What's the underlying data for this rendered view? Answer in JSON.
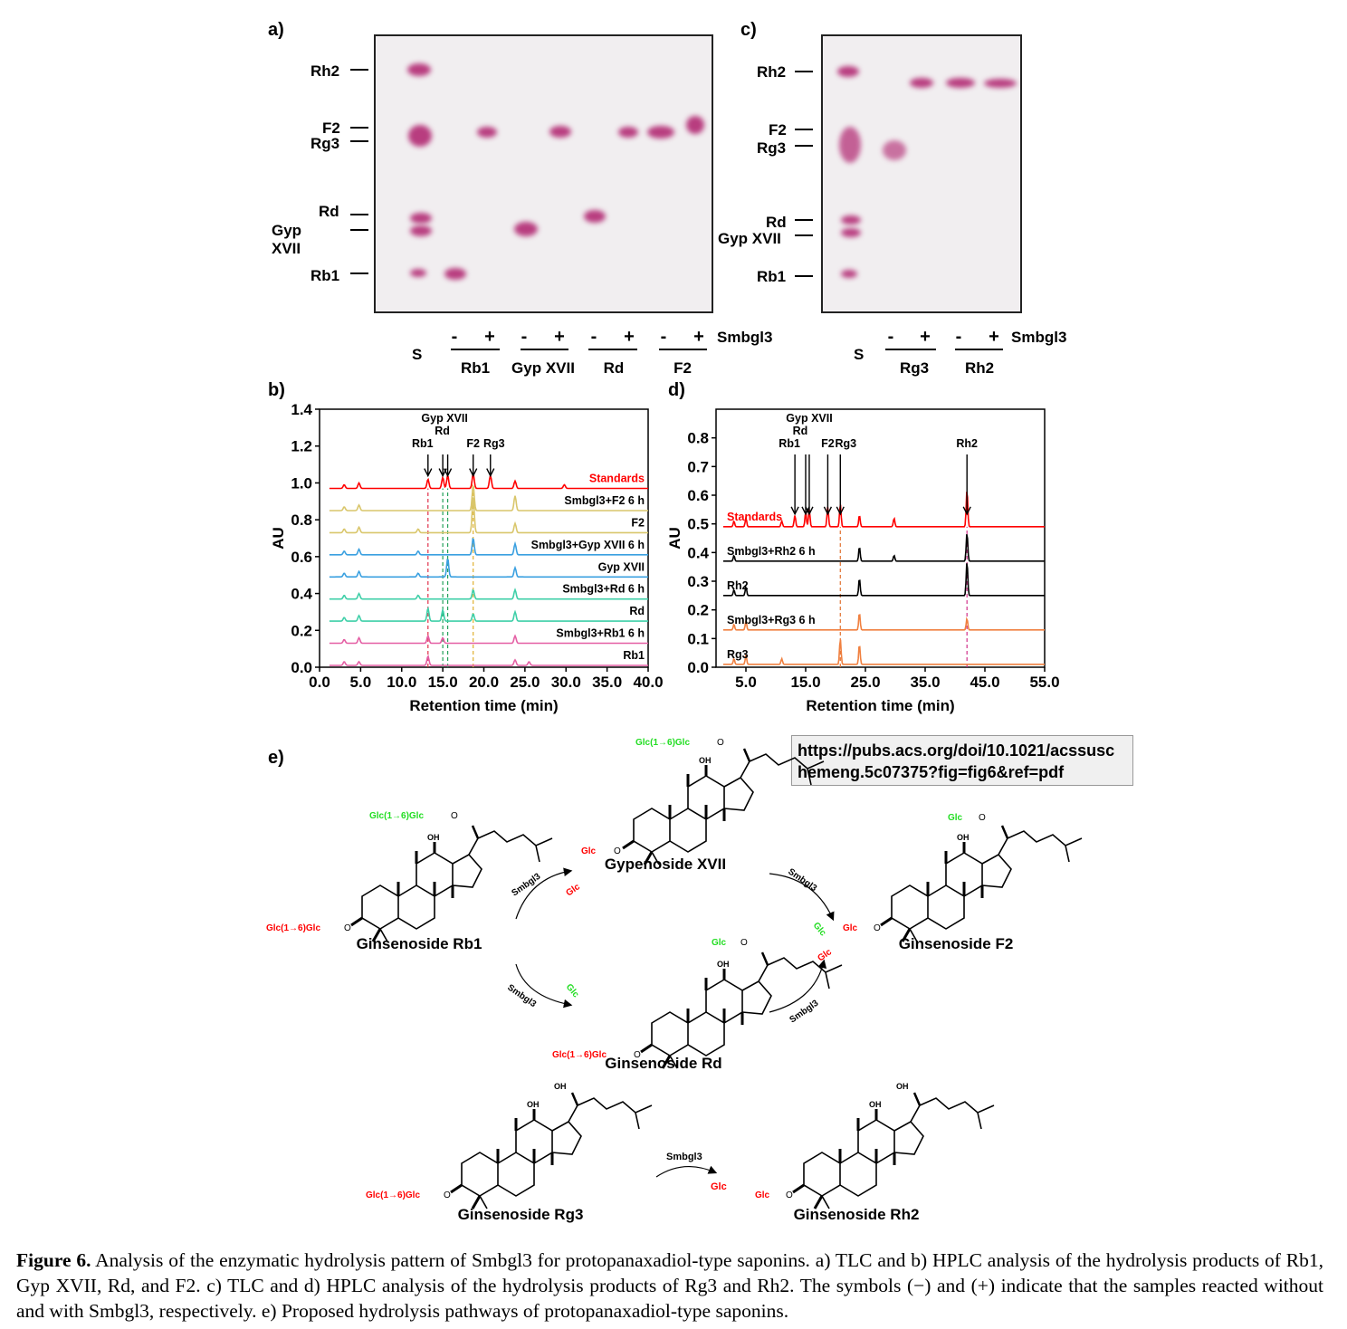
{
  "panels": {
    "a": "a)",
    "b": "b)",
    "c": "c)",
    "d": "d)",
    "e": "e)"
  },
  "tlc_a": {
    "compounds": [
      "Rh2",
      "F2",
      "Rg3",
      "Rd",
      "Gyp XVII",
      "Rb1"
    ],
    "lane_signs": [
      "-",
      "+",
      "-",
      "+",
      "-",
      "+",
      "-",
      "+"
    ],
    "groups": [
      "Rb1",
      "Gyp XVII",
      "Rd",
      "F2"
    ],
    "standard": "S",
    "enzyme": "Smbgl3"
  },
  "tlc_c": {
    "compounds": [
      "Rh2",
      "F2",
      "Rg3",
      "Rd",
      "Gyp XVII",
      "Rb1"
    ],
    "lane_signs": [
      "-",
      "+",
      "-",
      "+"
    ],
    "groups": [
      "Rg3",
      "Rh2"
    ],
    "standard": "S",
    "enzyme": "Smbgl3"
  },
  "chart_data": [
    {
      "type": "line",
      "panel": "b)",
      "xlabel": "Retention time (min)",
      "ylabel": "AU",
      "xlim": [
        0,
        40
      ],
      "ylim": [
        0,
        1.4
      ],
      "xticks": [
        "0.0",
        "5.0",
        "10.0",
        "15.0",
        "20.0",
        "25.0",
        "30.0",
        "35.0",
        "40.0"
      ],
      "yticks": [
        "0.0",
        "0.2",
        "0.4",
        "0.6",
        "0.8",
        "1.0",
        "1.2",
        "1.4"
      ],
      "peak_labels": [
        {
          "text": "Rb1",
          "x": 13.2
        },
        {
          "text": "Gyp XVII",
          "x": 15.0
        },
        {
          "text": "Rd",
          "x": 15.6
        },
        {
          "text": "F2",
          "x": 18.7
        },
        {
          "text": "Rg3",
          "x": 20.8
        }
      ],
      "series": [
        {
          "name": "Standards",
          "color": "#ff0000",
          "baseline": 0.97,
          "peaks": [
            [
              3.0,
              0.02
            ],
            [
              4.8,
              0.03
            ],
            [
              13.2,
              0.05
            ],
            [
              15.0,
              0.06
            ],
            [
              15.6,
              0.07
            ],
            [
              18.7,
              0.08
            ],
            [
              20.8,
              0.07
            ],
            [
              23.8,
              0.04
            ],
            [
              29.8,
              0.02
            ]
          ]
        },
        {
          "name": "Smbgl3+F2 6 h",
          "color": "#d9c66b",
          "baseline": 0.85,
          "peaks": [
            [
              3.0,
              0.02
            ],
            [
              4.8,
              0.03
            ],
            [
              18.7,
              0.14
            ],
            [
              23.8,
              0.08
            ]
          ]
        },
        {
          "name": "F2",
          "color": "#d9c66b",
          "baseline": 0.73,
          "peaks": [
            [
              3.0,
              0.02
            ],
            [
              4.8,
              0.03
            ],
            [
              12.0,
              0.02
            ],
            [
              18.7,
              0.2
            ],
            [
              23.8,
              0.05
            ]
          ]
        },
        {
          "name": "Smbgl3+Gyp XVII 6 h",
          "color": "#3aa0e0",
          "baseline": 0.61,
          "peaks": [
            [
              3.0,
              0.02
            ],
            [
              4.8,
              0.03
            ],
            [
              12.0,
              0.02
            ],
            [
              18.7,
              0.09
            ],
            [
              23.8,
              0.06
            ]
          ]
        },
        {
          "name": "Gyp XVII",
          "color": "#3aa0e0",
          "baseline": 0.49,
          "peaks": [
            [
              3.0,
              0.02
            ],
            [
              4.8,
              0.03
            ],
            [
              12.0,
              0.02
            ],
            [
              15.6,
              0.1
            ],
            [
              23.8,
              0.05
            ]
          ]
        },
        {
          "name": "Smbgl3+Rd 6 h",
          "color": "#3fcfa8",
          "baseline": 0.37,
          "peaks": [
            [
              3.0,
              0.02
            ],
            [
              4.8,
              0.03
            ],
            [
              12.0,
              0.02
            ],
            [
              18.7,
              0.05
            ],
            [
              23.8,
              0.05
            ]
          ]
        },
        {
          "name": "Rd",
          "color": "#3fcfa8",
          "baseline": 0.25,
          "peaks": [
            [
              3.0,
              0.02
            ],
            [
              4.8,
              0.03
            ],
            [
              13.2,
              0.07
            ],
            [
              15.0,
              0.06
            ],
            [
              18.7,
              0.04
            ],
            [
              23.8,
              0.05
            ]
          ]
        },
        {
          "name": "Smbgl3+Rb1 6 h",
          "color": "#e45fa4",
          "baseline": 0.13,
          "peaks": [
            [
              3.0,
              0.02
            ],
            [
              4.8,
              0.03
            ],
            [
              13.2,
              0.04
            ],
            [
              15.0,
              0.03
            ],
            [
              23.8,
              0.04
            ]
          ]
        },
        {
          "name": "Rb1",
          "color": "#e45fa4",
          "baseline": 0.01,
          "peaks": [
            [
              3.0,
              0.02
            ],
            [
              4.8,
              0.02
            ],
            [
              13.2,
              0.05
            ],
            [
              23.8,
              0.03
            ],
            [
              25.5,
              0.02
            ]
          ]
        }
      ],
      "guides": [
        {
          "x": 13.2,
          "color": "#e0304a"
        },
        {
          "x": 15.0,
          "color": "#23a05a"
        },
        {
          "x": 15.6,
          "color": "#23a05a"
        },
        {
          "x": 18.7,
          "color": "#e0b030"
        }
      ]
    },
    {
      "type": "line",
      "panel": "d)",
      "xlabel": "Retention time (min)",
      "ylabel": "AU",
      "xlim": [
        0,
        55
      ],
      "ylim": [
        0,
        0.9
      ],
      "xticks": [
        "5.0",
        "15.0",
        "25.0",
        "35.0",
        "45.0",
        "55.0"
      ],
      "yticks": [
        "0.0",
        "0.1",
        "0.2",
        "0.3",
        "0.4",
        "0.5",
        "0.6",
        "0.7",
        "0.8"
      ],
      "peak_labels": [
        {
          "text": "Rb1",
          "x": 13.2
        },
        {
          "text": "Gyp XVII",
          "x": 15.0
        },
        {
          "text": "Rd",
          "x": 15.6
        },
        {
          "text": "F2",
          "x": 18.7
        },
        {
          "text": "Rg3",
          "x": 20.8
        },
        {
          "text": "Rh2",
          "x": 42.0
        }
      ],
      "series": [
        {
          "name": "Standards",
          "color": "#ff0000",
          "baseline": 0.49,
          "peaks": [
            [
              3.0,
              0.02
            ],
            [
              5.0,
              0.03
            ],
            [
              11.0,
              0.02
            ],
            [
              13.2,
              0.04
            ],
            [
              15.0,
              0.05
            ],
            [
              15.6,
              0.06
            ],
            [
              18.7,
              0.07
            ],
            [
              20.8,
              0.08
            ],
            [
              24.0,
              0.04
            ],
            [
              29.8,
              0.03
            ],
            [
              42.0,
              0.13
            ]
          ]
        },
        {
          "name": "Smbgl3+Rh2 6 h",
          "color": "#000000",
          "baseline": 0.37,
          "peaks": [
            [
              3.0,
              0.02
            ],
            [
              24.0,
              0.05
            ],
            [
              29.8,
              0.02
            ],
            [
              42.0,
              0.1
            ]
          ]
        },
        {
          "name": "Rh2",
          "color": "#000000",
          "baseline": 0.25,
          "peaks": [
            [
              3.0,
              0.02
            ],
            [
              5.0,
              0.03
            ],
            [
              24.0,
              0.06
            ],
            [
              42.0,
              0.12
            ]
          ]
        },
        {
          "name": "Smbgl3+Rg3 6 h",
          "color": "#f08040",
          "baseline": 0.13,
          "peaks": [
            [
              3.0,
              0.02
            ],
            [
              5.0,
              0.03
            ],
            [
              24.0,
              0.06
            ],
            [
              42.0,
              0.04
            ]
          ]
        },
        {
          "name": "Rg3",
          "color": "#f08040",
          "baseline": 0.01,
          "peaks": [
            [
              3.0,
              0.02
            ],
            [
              5.0,
              0.03
            ],
            [
              11.0,
              0.02
            ],
            [
              20.8,
              0.09
            ],
            [
              24.0,
              0.07
            ]
          ]
        }
      ],
      "guides": [
        {
          "x": 20.8,
          "color": "#e07030"
        },
        {
          "x": 42.0,
          "color": "#d0308a"
        }
      ]
    }
  ],
  "pathway": {
    "compounds": {
      "rb1": {
        "name": "Ginsenoside Rb1",
        "c20": "Glc(1→6)Glc",
        "c3": "Glc(1→6)Glc"
      },
      "gyp": {
        "name": "Gypenoside XVII",
        "c20": "Glc(1→6)Glc",
        "c3": "Glc"
      },
      "rd": {
        "name": "Ginsenoside Rd",
        "c20": "Glc",
        "c3": "Glc(1→6)Glc"
      },
      "f2": {
        "name": "Ginsenoside F2",
        "c20": "Glc",
        "c3": "Glc"
      },
      "rg3": {
        "name": "Ginsenoside Rg3",
        "c3": "Glc(1→6)Glc"
      },
      "rh2": {
        "name": "Ginsenoside Rh2",
        "c3": "Glc"
      }
    },
    "oh": "OH",
    "o": "O",
    "enzyme": "Smbgl3",
    "released": "Glc",
    "colors": {
      "red": "#ff0000",
      "green": "#22dd22"
    }
  },
  "url": "https://pubs.acs.org/doi/10.1021/acssuschemeng.5c07375?fig=fig6&ref=pdf",
  "url_lines": [
    "https://pubs.acs.org/doi/10.1021/acssusc",
    "hemeng.5c07375?fig=fig6&ref=pdf"
  ],
  "caption": {
    "label": "Figure 6.",
    "text": " Analysis of the enzymatic hydrolysis pattern of Smbgl3 for protopanaxadiol-type saponins. a) TLC and b) HPLC analysis of the hydrolysis products of Rb1, Gyp XVII, Rd, and F2. c) TLC and d) HPLC analysis of the hydrolysis products of Rg3 and Rh2. The symbols (−) and (+) indicate that the samples reacted without and with Smbgl3, respectively. e) Proposed hydrolysis pathways of protopanaxadiol-type saponins."
  }
}
